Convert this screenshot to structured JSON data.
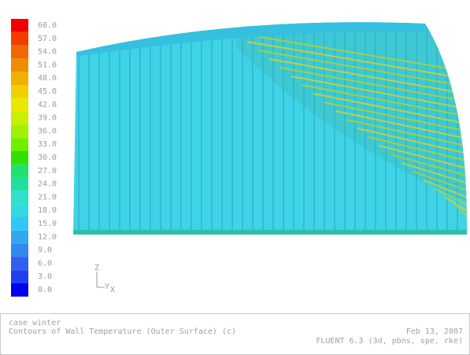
{
  "colorbar": {
    "labels": [
      "60.0",
      "57.0",
      "54.0",
      "51.0",
      "48.0",
      "45.0",
      "42.0",
      "39.0",
      "36.0",
      "33.0",
      "30.0",
      "27.0",
      "24.0",
      "21.0",
      "18.0",
      "15.0",
      "12.0",
      "9.0",
      "6.0",
      "3.0",
      "0.0"
    ]
  },
  "axes": {
    "z": "Z",
    "y": "Y",
    "x": "X"
  },
  "footer": {
    "case": "case winter",
    "title": "Contours of Wall Temperature (Outer Surface) (c)",
    "date": "Feb 13, 2007",
    "solver": "FLUENT 6.3 (3d, pbns, spe, rke)"
  }
}
